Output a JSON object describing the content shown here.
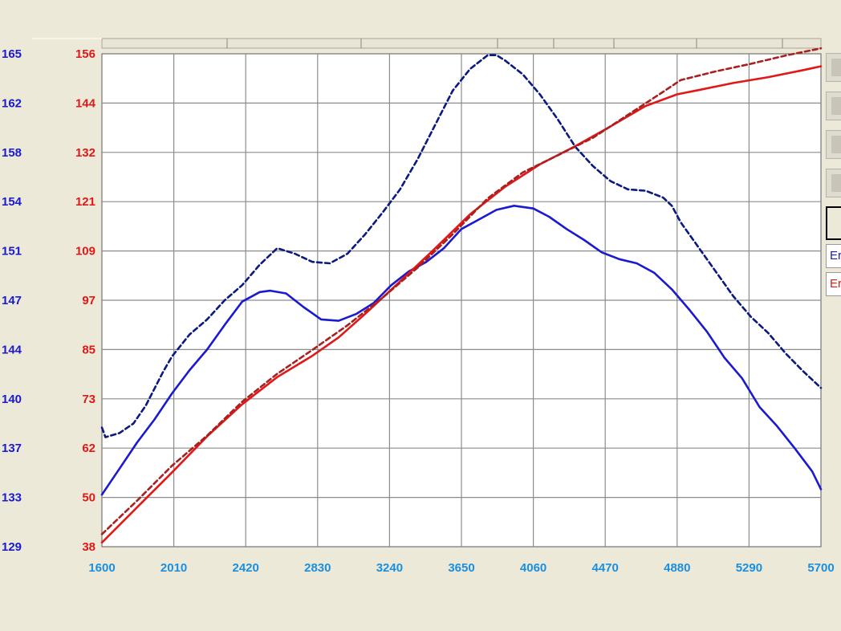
{
  "chart_data": {
    "type": "line",
    "title": "",
    "xlabel": "",
    "x_ticks": [
      "1600",
      "2010",
      "2420",
      "2830",
      "3240",
      "3650",
      "4060",
      "4470",
      "4880",
      "5290",
      "5700"
    ],
    "xlim": [
      1600,
      5700
    ],
    "y_left_blue_ticks": [
      "165",
      "162",
      "158",
      "154",
      "151",
      "147",
      "144",
      "140",
      "137",
      "133",
      "129"
    ],
    "y_left_red_ticks": [
      "156",
      "144",
      "132",
      "121",
      "109",
      "97",
      "85",
      "73",
      "62",
      "50",
      "38"
    ],
    "y_left_blue_range": [
      129,
      165
    ],
    "y_left_red_range": [
      38,
      156
    ],
    "grid": true,
    "series": [
      {
        "color": "#1a1ad0",
        "style": "solid",
        "axis": "blue",
        "x": [
          1600,
          1700,
          1800,
          1900,
          2000,
          2100,
          2200,
          2300,
          2400,
          2500,
          2560,
          2650,
          2750,
          2850,
          2950,
          3050,
          3150,
          3250,
          3350,
          3450,
          3550,
          3650,
          3750,
          3850,
          3950,
          4060,
          4150,
          4250,
          4350,
          4450,
          4550,
          4650,
          4750,
          4850,
          4950,
          5050,
          5150,
          5250,
          5350,
          5450,
          5550,
          5650,
          5700
        ],
        "y": [
          132.8,
          134.7,
          136.6,
          138.3,
          140.2,
          141.9,
          143.4,
          145.2,
          146.9,
          147.6,
          147.7,
          147.5,
          146.5,
          145.6,
          145.5,
          146.0,
          146.8,
          148.1,
          149.1,
          149.8,
          150.8,
          152.2,
          152.9,
          153.6,
          153.9,
          153.7,
          153.1,
          152.2,
          151.4,
          150.5,
          150.0,
          149.7,
          149.0,
          147.8,
          146.3,
          144.7,
          142.8,
          141.3,
          139.2,
          137.8,
          136.2,
          134.5,
          133.2
        ]
      },
      {
        "color": "#0a1a80",
        "style": "dashed",
        "axis": "blue",
        "x": [
          1600,
          1620,
          1700,
          1780,
          1850,
          1950,
          2000,
          2100,
          2200,
          2300,
          2400,
          2500,
          2600,
          2700,
          2800,
          2900,
          3000,
          3100,
          3200,
          3300,
          3400,
          3500,
          3600,
          3700,
          3800,
          3850,
          3900,
          4000,
          4100,
          4200,
          4300,
          4400,
          4500,
          4600,
          4700,
          4800,
          4850,
          4900,
          5000,
          5100,
          5200,
          5300,
          5400,
          5500,
          5600,
          5700
        ],
        "y": [
          137.7,
          137.0,
          137.3,
          138.0,
          139.3,
          141.8,
          142.9,
          144.5,
          145.6,
          147.0,
          148.1,
          149.6,
          150.8,
          150.4,
          149.8,
          149.7,
          150.4,
          151.8,
          153.4,
          155.1,
          157.3,
          159.8,
          162.3,
          163.9,
          164.9,
          164.9,
          164.5,
          163.5,
          162.0,
          160.2,
          158.2,
          156.8,
          155.7,
          155.1,
          155.0,
          154.5,
          153.9,
          152.7,
          150.9,
          149.1,
          147.3,
          145.8,
          144.6,
          143.1,
          141.8,
          140.6
        ]
      },
      {
        "color": "#e01818",
        "style": "solid",
        "axis": "red",
        "x": [
          1600,
          1800,
          2000,
          2200,
          2400,
          2600,
          2800,
          2950,
          3100,
          3300,
          3500,
          3700,
          3900,
          4100,
          4300,
          4500,
          4700,
          4880,
          5000,
          5200,
          5400,
          5600,
          5700
        ],
        "y": [
          39.0,
          47.4,
          55.8,
          64.4,
          72.1,
          78.6,
          83.7,
          88.1,
          93.7,
          101.5,
          109.4,
          117.6,
          124.2,
          129.6,
          133.9,
          138.6,
          143.5,
          146.3,
          147.3,
          149.0,
          150.4,
          152.1,
          153.0
        ]
      },
      {
        "color": "#a82020",
        "style": "dashed",
        "axis": "red",
        "x": [
          1600,
          1800,
          2000,
          2200,
          2400,
          2600,
          2800,
          3000,
          3200,
          3400,
          3600,
          3800,
          4000,
          4200,
          4400,
          4600,
          4800,
          4900,
          5100,
          5300,
          5500,
          5700
        ],
        "y": [
          41.0,
          49.0,
          57.4,
          64.6,
          72.7,
          79.4,
          85.1,
          91.0,
          97.6,
          104.8,
          112.8,
          121.4,
          127.6,
          131.7,
          135.9,
          141.4,
          146.9,
          149.7,
          151.8,
          153.6,
          155.6,
          157.3
        ]
      }
    ]
  },
  "side_panel": {
    "field1_text": "Er",
    "field1_color": "#1a1ad0",
    "field2_text": "Er",
    "field2_color": "#e01818"
  }
}
